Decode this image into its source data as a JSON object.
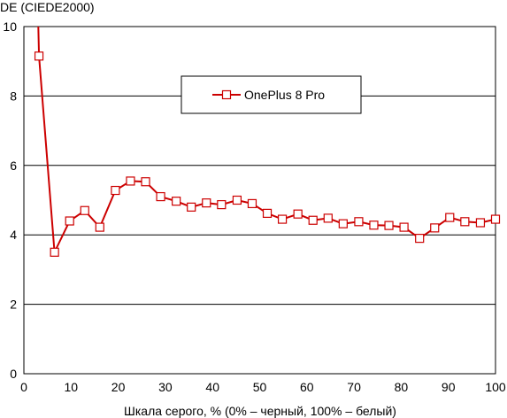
{
  "chart_data": {
    "type": "line",
    "ylabel": "DE (CIEDE2000)",
    "xlabel": "Шкала серого, % (0% – черный, 100% – белый)",
    "xlim": [
      0,
      100
    ],
    "ylim": [
      0,
      10
    ],
    "x_ticks": [
      "0",
      "10",
      "20",
      "30",
      "40",
      "50",
      "60",
      "70",
      "80",
      "90",
      "100"
    ],
    "y_ticks": [
      "0",
      "2",
      "4",
      "6",
      "8",
      "10"
    ],
    "grid": "horizontal",
    "legend_position": "top-center",
    "series": [
      {
        "name": "OnePlus 8 Pro",
        "color": "#cc0000",
        "marker": "square-open",
        "x": [
          3.2,
          6.5,
          9.7,
          12.9,
          16.1,
          19.4,
          22.6,
          25.8,
          29.0,
          32.3,
          35.5,
          38.7,
          41.9,
          45.2,
          48.4,
          51.6,
          54.8,
          58.1,
          61.3,
          64.5,
          67.7,
          71.0,
          74.2,
          77.4,
          80.6,
          83.9,
          87.1,
          90.3,
          93.5,
          96.8,
          100
        ],
        "y": [
          9.15,
          3.5,
          4.4,
          4.7,
          4.22,
          5.28,
          5.55,
          5.53,
          5.1,
          4.97,
          4.8,
          4.92,
          4.87,
          5.0,
          4.9,
          4.62,
          4.45,
          4.6,
          4.42,
          4.48,
          4.32,
          4.38,
          4.28,
          4.27,
          4.22,
          3.9,
          4.2,
          4.5,
          4.38,
          4.35,
          4.45
        ],
        "line_extends_above_top_from": [
          2.7,
          12.0
        ]
      }
    ]
  }
}
